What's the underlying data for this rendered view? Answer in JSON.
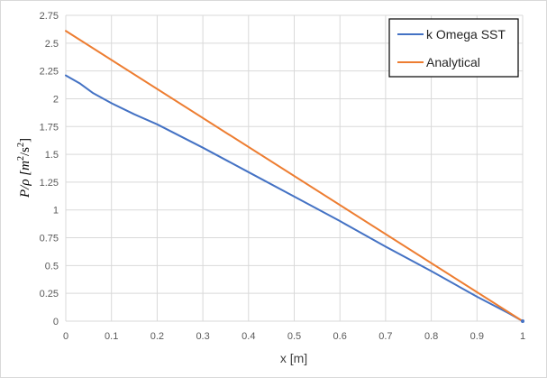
{
  "chart_data": {
    "type": "line",
    "xlabel": "x [m]",
    "ylabel_main": "P/ρ [m",
    "ylabel_sup1": "2",
    "ylabel_mid": "/s",
    "ylabel_sup2": "2",
    "ylabel_end": "]",
    "xlim": [
      0,
      1
    ],
    "ylim": [
      0,
      2.75
    ],
    "xticks": [
      "0",
      "0.1",
      "0.2",
      "0.3",
      "0.4",
      "0.5",
      "0.6",
      "0.7",
      "0.8",
      "0.9",
      "1"
    ],
    "yticks": [
      "0",
      "0.25",
      "0.5",
      "0.75",
      "1",
      "1.25",
      "1.5",
      "1.75",
      "2",
      "2.25",
      "2.5",
      "2.75"
    ],
    "grid": true,
    "legend_position": "top-right",
    "series": [
      {
        "name": "k Omega SST",
        "color": "#4472c4",
        "x": [
          0,
          0.03,
          0.06,
          0.1,
          0.15,
          0.2,
          0.3,
          0.4,
          0.5,
          0.6,
          0.7,
          0.8,
          0.9,
          0.97,
          1.0
        ],
        "y": [
          2.21,
          2.14,
          2.05,
          1.96,
          1.86,
          1.77,
          1.56,
          1.34,
          1.12,
          0.9,
          0.67,
          0.45,
          0.22,
          0.07,
          0.0
        ]
      },
      {
        "name": "Analytical",
        "color": "#ed7d31",
        "x": [
          0,
          1
        ],
        "y": [
          2.61,
          0
        ]
      }
    ]
  }
}
